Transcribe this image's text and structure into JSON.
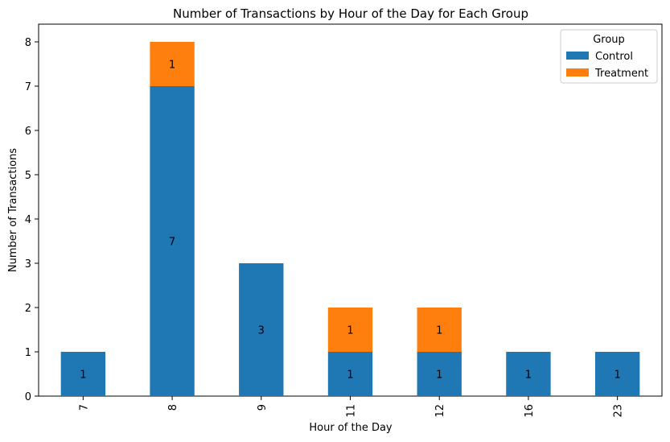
{
  "chart_data": {
    "type": "bar",
    "stacked": true,
    "title": "Number of Transactions by Hour of the Day for Each Group",
    "xlabel": "Hour of the Day",
    "ylabel": "Number of Transactions",
    "categories": [
      "7",
      "8",
      "9",
      "11",
      "12",
      "16",
      "23"
    ],
    "series": [
      {
        "name": "Control",
        "values": [
          1,
          7,
          3,
          1,
          1,
          1,
          1
        ],
        "color": "#1f77b4"
      },
      {
        "name": "Treatment",
        "values": [
          0,
          1,
          0,
          1,
          1,
          0,
          0
        ],
        "color": "#ff7f0e"
      }
    ],
    "ylim": [
      0,
      8.4
    ],
    "yticks": [
      0,
      1,
      2,
      3,
      4,
      5,
      6,
      7,
      8
    ],
    "grid": false,
    "legend": {
      "title": "Group",
      "placement": "top-right"
    }
  }
}
